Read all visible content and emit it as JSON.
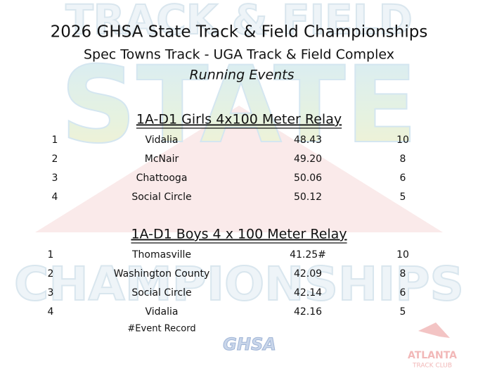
{
  "header": {
    "title": "2026 GHSA State Track & Field Championships",
    "subtitle": "Spec Towns Track - UGA Track & Field Complex",
    "section": "Running Events"
  },
  "watermark": {
    "top": "TRACK & FIELD",
    "middle": "STATE",
    "bottom": "CHAMPIONSHIPS"
  },
  "events": [
    {
      "title": "1A-D1 Girls  4x100 Meter Relay",
      "rows": [
        [
          "1",
          "Vidalia",
          "48.43",
          "10"
        ],
        [
          "2",
          "McNair",
          "49.20",
          "8"
        ],
        [
          "3",
          "Chattooga",
          "50.06",
          "6"
        ],
        [
          "4",
          "Social Circle",
          "50.12",
          "5"
        ]
      ]
    },
    {
      "title": "1A-D1 Boys 4 x 100 Meter Relay",
      "rows": [
        [
          "1",
          "Thomasville",
          "41.25#",
          "10"
        ],
        [
          "2",
          "Washington County",
          "42.09",
          "8"
        ],
        [
          "3",
          "Social Circle",
          "42.14",
          "6"
        ],
        [
          "4",
          "Vidalia",
          "42.16",
          "5"
        ]
      ]
    }
  ],
  "footnote": "#Event Record",
  "logos": {
    "ghsa": "GHSA",
    "atlanta_line1": "ATLANTA",
    "atlanta_line2": "TRACK CLUB"
  }
}
